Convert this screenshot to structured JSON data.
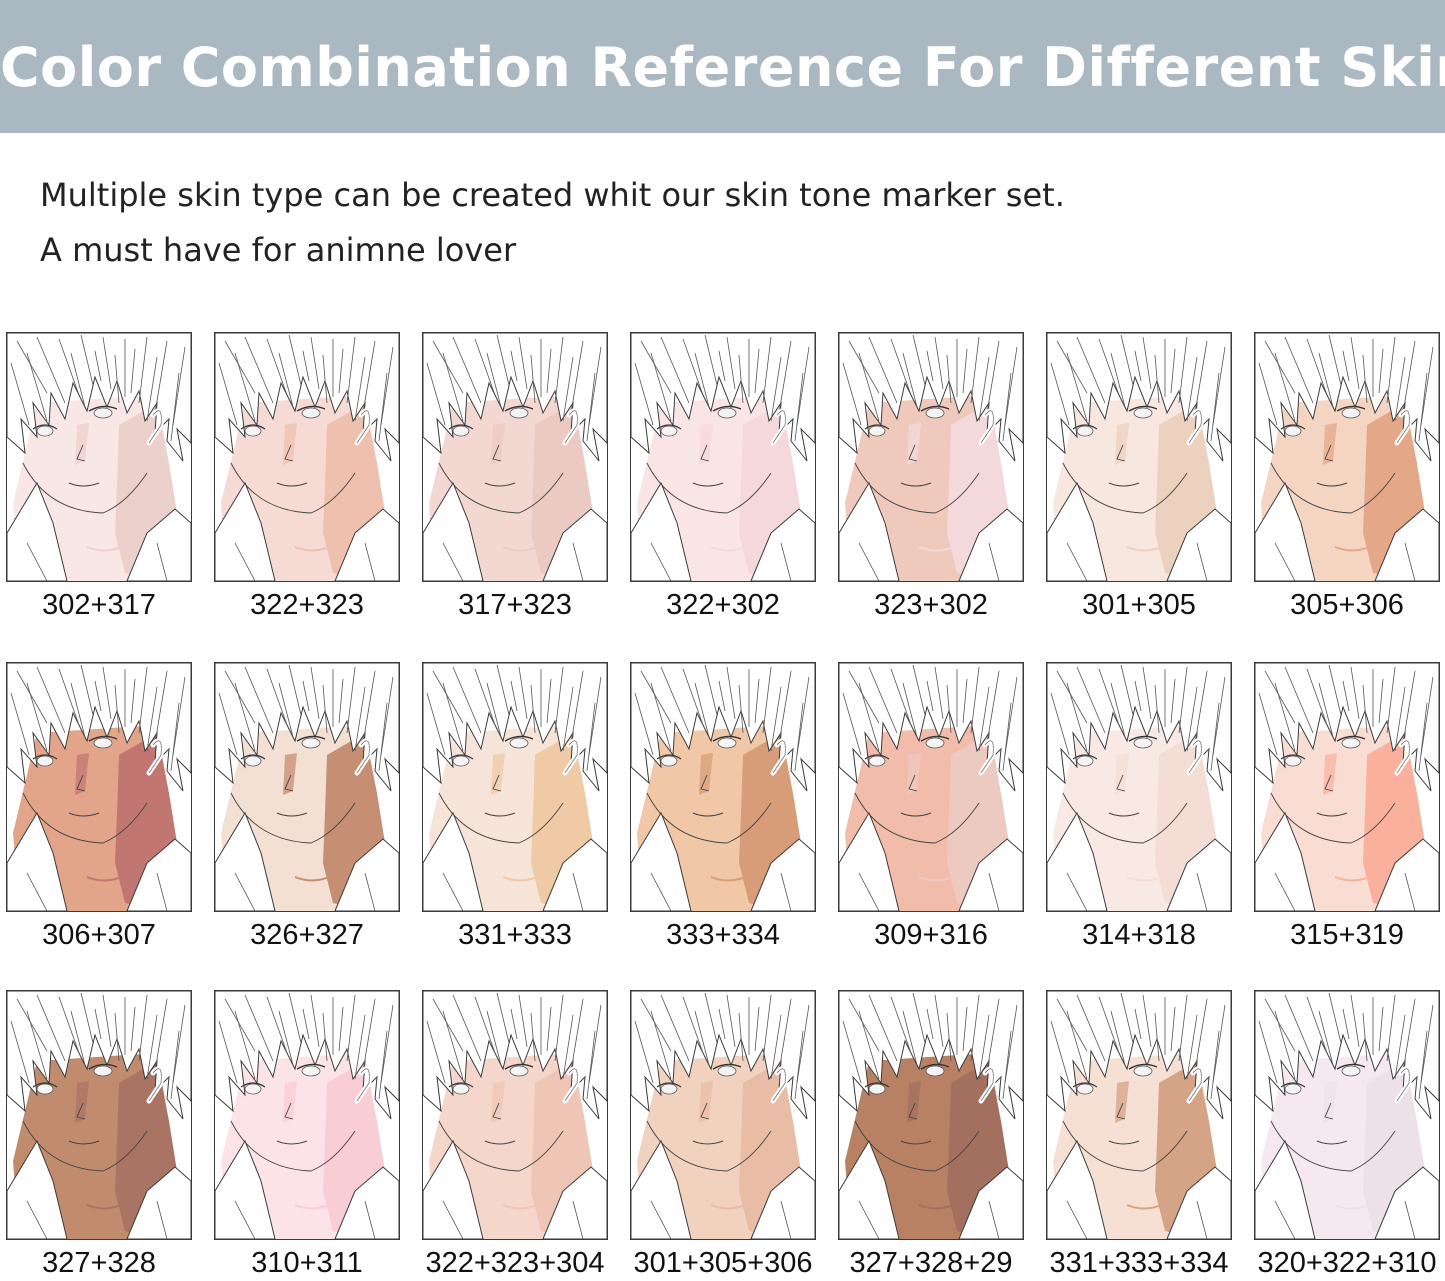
{
  "header": {
    "title": "Color Combination Reference For Different Skin"
  },
  "intro": {
    "line1": "Multiple skin type can be created whit our skin tone marker set.",
    "line2": "A must have for animne lover"
  },
  "swatches": [
    {
      "label": "302+317",
      "base": "#f9e7e6",
      "shade": "#ecd0cb"
    },
    {
      "label": "322+323",
      "base": "#f5dbd3",
      "shade": "#efc0ad"
    },
    {
      "label": "317+323",
      "base": "#f3d8d1",
      "shade": "#ebcac2"
    },
    {
      "label": "322+302",
      "base": "#f9e5e6",
      "shade": "#f5d8dc"
    },
    {
      "label": "323+302",
      "base": "#f0c9bd",
      "shade": "#f3d9db"
    },
    {
      "label": "301+305",
      "base": "#f8e7de",
      "shade": "#ecd1bf"
    },
    {
      "label": "305+306",
      "base": "#f3d5c2",
      "shade": "#e4a888"
    },
    {
      "label": "306+307",
      "base": "#e3a58a",
      "shade": "#c17672"
    },
    {
      "label": "326+327",
      "base": "#f4dfd3",
      "shade": "#c68e72"
    },
    {
      "label": "331+333",
      "base": "#f7e4d9",
      "shade": "#f0c9a5"
    },
    {
      "label": "333+334",
      "base": "#f0c8a7",
      "shade": "#d79d78"
    },
    {
      "label": "309+316",
      "base": "#f1bcaa",
      "shade": "#eccac0"
    },
    {
      "label": "314+318",
      "base": "#f9e9e4",
      "shade": "#f3ddd4"
    },
    {
      "label": "315+319",
      "base": "#f9ddd3",
      "shade": "#f9b19e"
    },
    {
      "label": "327+328",
      "base": "#c18c6d",
      "shade": "#aa7465"
    },
    {
      "label": "310+311",
      "base": "#fbe3e7",
      "shade": "#f9cdd4"
    },
    {
      "label": "322+323+304",
      "base": "#f4d6cb",
      "shade": "#efc6b6"
    },
    {
      "label": "301+305+306",
      "base": "#f1d2bf",
      "shade": "#e8bca5"
    },
    {
      "label": "327+328+29",
      "base": "#b98164",
      "shade": "#a36f5f"
    },
    {
      "label": "331+333+334",
      "base": "#f6e0d4",
      "shade": "#d5a385"
    },
    {
      "label": "320+322+310",
      "base": "#f5e9ef",
      "shade": "#ede1e8"
    }
  ]
}
